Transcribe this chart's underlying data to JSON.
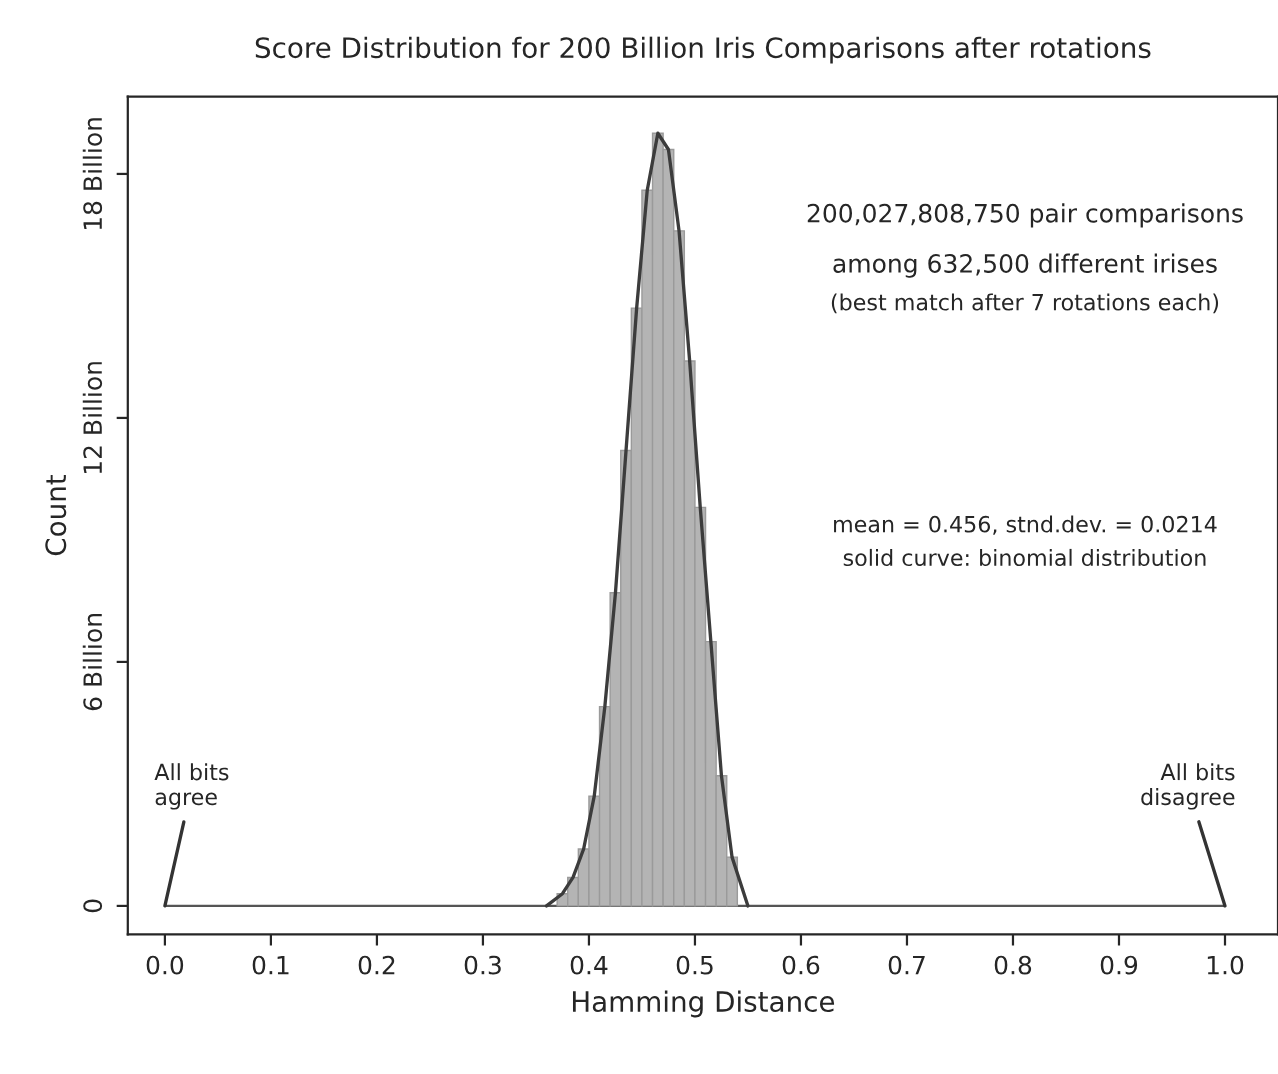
{
  "chart_data": {
    "type": "histogram",
    "title": "Score Distribution for 200 Billion Iris Comparisons after rotations",
    "xlabel": "Hamming Distance",
    "ylabel": "Count",
    "bins": [
      0.37,
      0.38,
      0.39,
      0.4,
      0.41,
      0.42,
      0.43,
      0.44,
      0.45,
      0.46,
      0.47,
      0.48,
      0.49,
      0.5,
      0.51,
      0.52,
      0.53,
      0.54
    ],
    "values": [
      0.3,
      0.7,
      1.4,
      2.7,
      4.9,
      7.7,
      11.2,
      14.7,
      17.6,
      19.0,
      18.6,
      16.6,
      13.4,
      9.8,
      6.5,
      3.2,
      1.2
    ],
    "color": "#b4b4b4",
    "series": [
      {
        "type": "line",
        "color": "#3c3c3c",
        "x": [
          0.36,
          0.375,
          0.385,
          0.395,
          0.405,
          0.415,
          0.425,
          0.435,
          0.445,
          0.455,
          0.465,
          0.475,
          0.485,
          0.495,
          0.505,
          0.515,
          0.525,
          0.535,
          0.55
        ],
        "values": [
          0.0,
          0.3,
          0.7,
          1.4,
          2.7,
          4.9,
          7.7,
          11.2,
          14.7,
          17.6,
          19.0,
          18.6,
          16.6,
          13.4,
          9.8,
          6.5,
          3.2,
          1.2,
          0.0
        ]
      }
    ],
    "xlim": [
      -0.035,
      1.05
    ],
    "xticks": [
      {
        "value": 0,
        "label": "0.0"
      },
      0.1,
      0.2,
      0.3,
      0.4,
      0.5,
      0.6,
      0.7,
      0.8,
      0.9,
      {
        "value": 1,
        "label": "1.0"
      }
    ],
    "ylim": [
      -0.7,
      19.9
    ],
    "yticks": [
      0,
      {
        "value": 6,
        "label": "6 Billion"
      },
      {
        "value": 12,
        "label": "12 Billion"
      },
      {
        "value": 18,
        "label": "18 Billion"
      }
    ],
    "annotations": [
      {
        "text": "All bits\nagree",
        "x": 0,
        "y": 0
      },
      {
        "text": "All bits\ndisagree",
        "x": 1,
        "y": 0
      },
      "200,027,808,750 pair comparisons",
      "among 632,500 different irises",
      "(best match after 7 rotations each)",
      "mean = 0.456, stnd.dev. = 0.0214",
      "solid curve: binomial distribution"
    ],
    "ref_lines": [
      {
        "axis": "y",
        "value": 0,
        "color": "#555555"
      }
    ],
    "grid": false,
    "legend": false
  }
}
